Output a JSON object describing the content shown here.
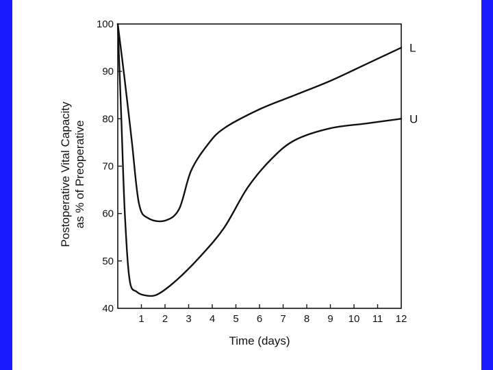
{
  "colors": {
    "slide_bar": "#1a1aff",
    "ink": "#111111",
    "background": "#ffffff"
  },
  "chart_data": {
    "type": "line",
    "title": "",
    "xlabel": "Time (days)",
    "ylabel": "Postoperative Vital Capacity as % of Preoperative",
    "ylabel_lines": [
      "Postoperative Vital Capacity",
      "as % of Preoperative"
    ],
    "xlim": [
      0,
      12
    ],
    "ylim": [
      40,
      100
    ],
    "x_ticks": [
      1,
      2,
      3,
      4,
      5,
      6,
      7,
      8,
      9,
      10,
      11,
      12
    ],
    "x_tick_labels": [
      "1",
      "2",
      "3",
      "4",
      "5",
      "6",
      "7",
      "8",
      "9",
      "10",
      "11",
      "12"
    ],
    "y_ticks": [
      40,
      50,
      60,
      70,
      80,
      90,
      100
    ],
    "y_tick_labels": [
      "40",
      "50",
      "60",
      "70",
      "80",
      "90",
      "100"
    ],
    "grid": false,
    "series": [
      {
        "name": "L",
        "label": "L",
        "x": [
          0,
          0.3,
          0.6,
          0.9,
          1.3,
          2.0,
          2.6,
          3.1,
          3.8,
          4.5,
          6,
          7.5,
          9,
          10.5,
          12
        ],
        "y": [
          100,
          88,
          75,
          62,
          59,
          58.5,
          61,
          69,
          74.5,
          78,
          82,
          85,
          88,
          91.5,
          95
        ]
      },
      {
        "name": "U",
        "label": "U",
        "x": [
          0,
          0.15,
          0.3,
          0.5,
          0.8,
          1.2,
          1.7,
          2.5,
          3.5,
          4.5,
          5.5,
          6.5,
          7.5,
          9,
          10.5,
          12
        ],
        "y": [
          100,
          80,
          60,
          46,
          43.5,
          42.7,
          43,
          46,
          51,
          57,
          65.5,
          71.5,
          75.5,
          78,
          79,
          80
        ]
      }
    ]
  }
}
